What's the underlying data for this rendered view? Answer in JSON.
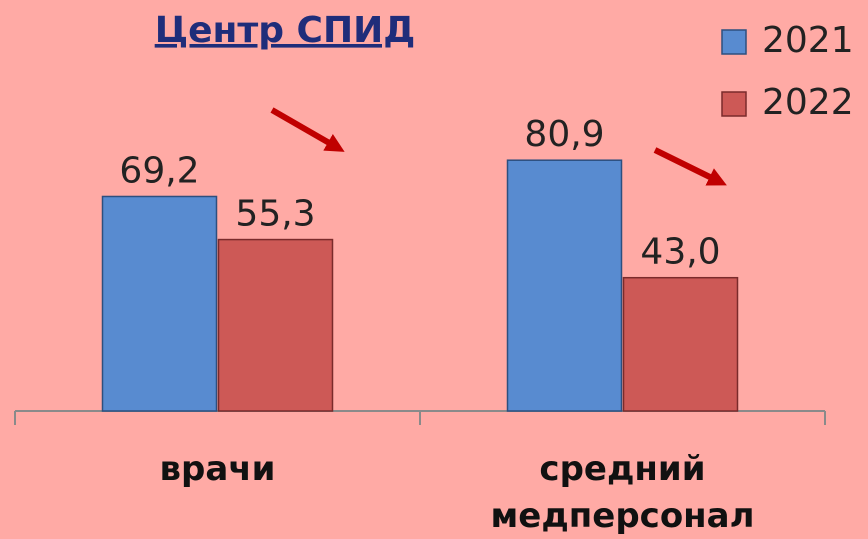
{
  "chart_data": {
    "type": "bar",
    "title": "Центр СПИД",
    "categories": [
      "врачи",
      "средний медперсонал"
    ],
    "series": [
      {
        "name": "2021",
        "color": "#588bd0",
        "values": [
          69.2,
          80.9
        ],
        "value_labels": [
          "69,2",
          "80,9"
        ]
      },
      {
        "name": "2022",
        "color": "#cd5956",
        "values": [
          55.3,
          43.0
        ],
        "value_labels": [
          "55,3",
          "43,0"
        ]
      }
    ]
  }
}
